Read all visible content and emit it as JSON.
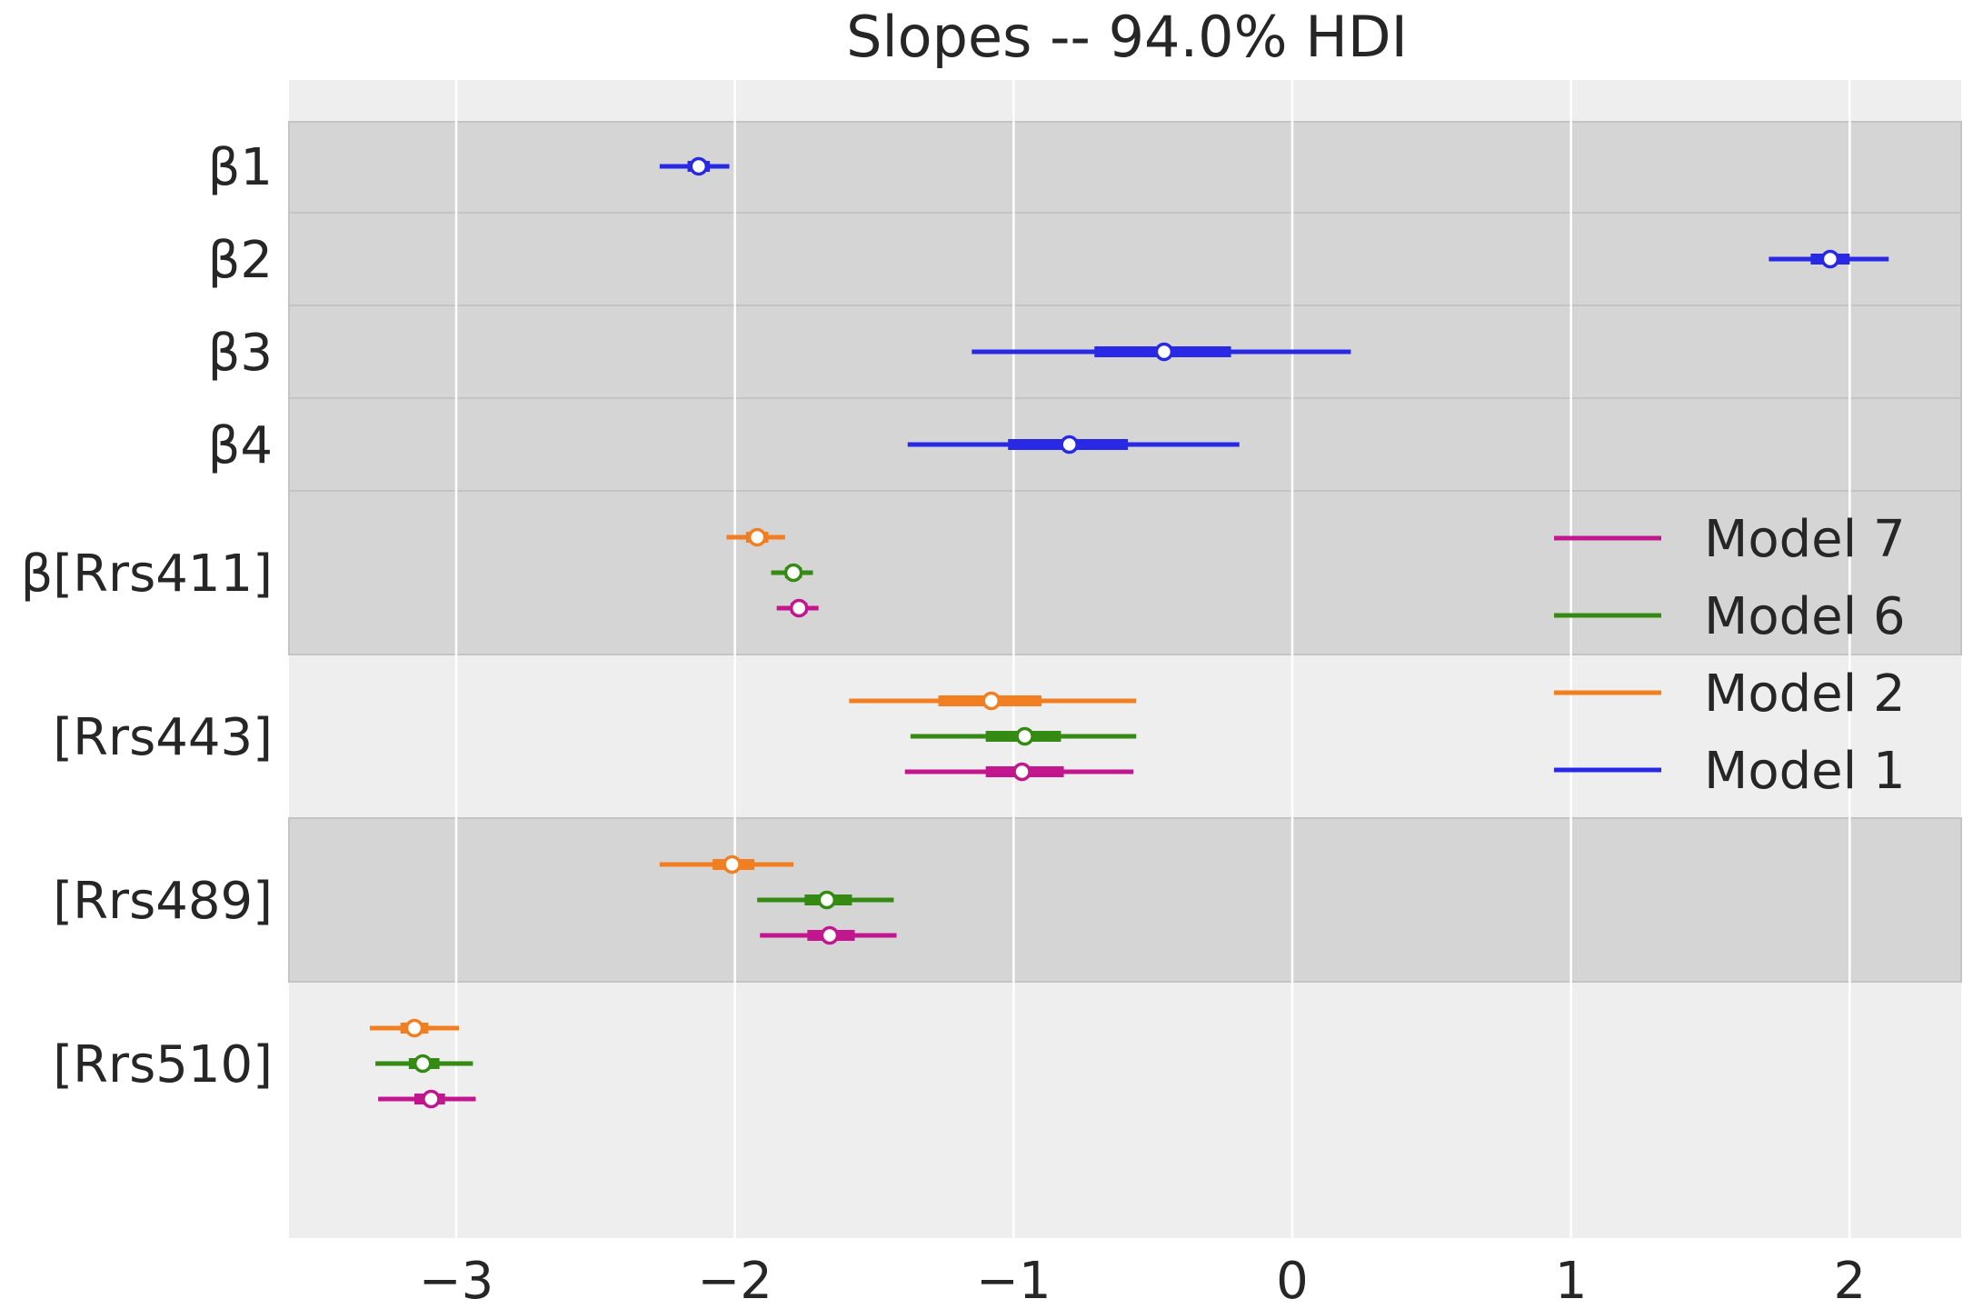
{
  "chart_data": {
    "type": "forest",
    "title": "Slopes -- 94.0% HDI",
    "xlabel": "",
    "ylabel": "",
    "xlim": [
      -3.6,
      2.4
    ],
    "x_ticks": [
      -3,
      -2,
      -1,
      0,
      1,
      2
    ],
    "x_tick_labels": [
      "−3",
      "−2",
      "−1",
      "0",
      "1",
      "2"
    ],
    "grid": true,
    "legend_position": "right",
    "legend": [
      {
        "name": "Model 7",
        "color": "#c2168f"
      },
      {
        "name": "Model 6",
        "color": "#348a12"
      },
      {
        "name": "Model 2",
        "color": "#f27e22"
      },
      {
        "name": "Model 1",
        "color": "#2929e5"
      }
    ],
    "colors": {
      "Model 1": "#2929e5",
      "Model 2": "#f27e22",
      "Model 6": "#348a12",
      "Model 7": "#c2168f",
      "band_dark": "#d5d5d5",
      "band_light": "#eeeeee"
    },
    "groups": [
      {
        "label": "β1",
        "shade": "dark",
        "rows": [
          {
            "model": "Model 1",
            "hdi": [
              -2.27,
              -2.02
            ],
            "iqr": [
              -2.17,
              -2.09
            ],
            "mean": -2.13
          }
        ]
      },
      {
        "label": "β2",
        "shade": "dark",
        "rows": [
          {
            "model": "Model 1",
            "hdi": [
              1.71,
              2.14
            ],
            "iqr": [
              1.86,
              2.0
            ],
            "mean": 1.93
          }
        ]
      },
      {
        "label": "β3",
        "shade": "dark",
        "rows": [
          {
            "model": "Model 1",
            "hdi": [
              -1.15,
              0.21
            ],
            "iqr": [
              -0.71,
              -0.22
            ],
            "mean": -0.46
          }
        ]
      },
      {
        "label": "β4",
        "shade": "dark",
        "rows": [
          {
            "model": "Model 1",
            "hdi": [
              -1.38,
              -0.19
            ],
            "iqr": [
              -1.02,
              -0.59
            ],
            "mean": -0.8
          }
        ]
      },
      {
        "label": "β[Rrs411]",
        "shade": "dark",
        "rows": [
          {
            "model": "Model 2",
            "hdi": [
              -2.03,
              -1.82
            ],
            "iqr": [
              -1.96,
              -1.88
            ],
            "mean": -1.92
          },
          {
            "model": "Model 6",
            "hdi": [
              -1.87,
              -1.72
            ],
            "iqr": [
              -1.82,
              -1.76
            ],
            "mean": -1.79
          },
          {
            "model": "Model 7",
            "hdi": [
              -1.85,
              -1.7
            ],
            "iqr": [
              -1.8,
              -1.74
            ],
            "mean": -1.77
          }
        ]
      },
      {
        "label": "[Rrs443]",
        "shade": "light",
        "rows": [
          {
            "model": "Model 2",
            "hdi": [
              -1.59,
              -0.56
            ],
            "iqr": [
              -1.27,
              -0.9
            ],
            "mean": -1.08
          },
          {
            "model": "Model 6",
            "hdi": [
              -1.37,
              -0.56
            ],
            "iqr": [
              -1.1,
              -0.83
            ],
            "mean": -0.96
          },
          {
            "model": "Model 7",
            "hdi": [
              -1.39,
              -0.57
            ],
            "iqr": [
              -1.1,
              -0.82
            ],
            "mean": -0.97
          }
        ]
      },
      {
        "label": "[Rrs489]",
        "shade": "dark",
        "rows": [
          {
            "model": "Model 2",
            "hdi": [
              -2.27,
              -1.79
            ],
            "iqr": [
              -2.08,
              -1.93
            ],
            "mean": -2.01
          },
          {
            "model": "Model 6",
            "hdi": [
              -1.92,
              -1.43
            ],
            "iqr": [
              -1.75,
              -1.58
            ],
            "mean": -1.67
          },
          {
            "model": "Model 7",
            "hdi": [
              -1.91,
              -1.42
            ],
            "iqr": [
              -1.74,
              -1.57
            ],
            "mean": -1.66
          }
        ]
      },
      {
        "label": "[Rrs510]",
        "shade": "light",
        "rows": [
          {
            "model": "Model 2",
            "hdi": [
              -3.31,
              -2.99
            ],
            "iqr": [
              -3.2,
              -3.1
            ],
            "mean": -3.15
          },
          {
            "model": "Model 6",
            "hdi": [
              -3.29,
              -2.94
            ],
            "iqr": [
              -3.17,
              -3.06
            ],
            "mean": -3.12
          },
          {
            "model": "Model 7",
            "hdi": [
              -3.28,
              -2.93
            ],
            "iqr": [
              -3.15,
              -3.04
            ],
            "mean": -3.09
          }
        ]
      }
    ]
  }
}
